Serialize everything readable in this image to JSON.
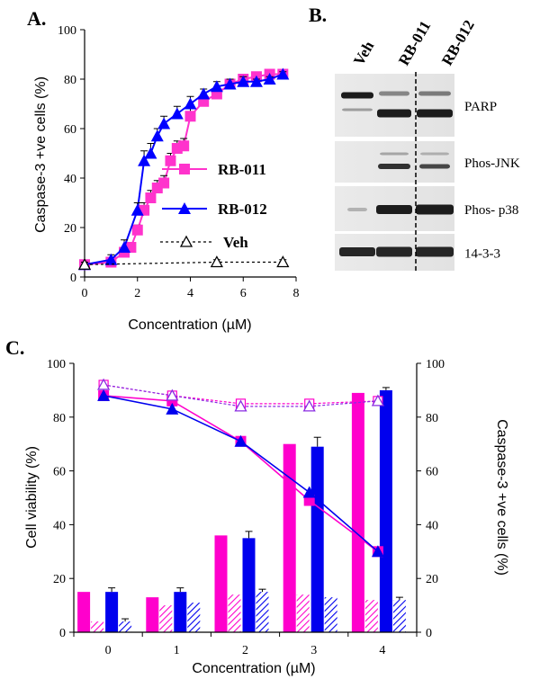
{
  "panels": {
    "a": "A.",
    "b": "B.",
    "c": "C."
  },
  "chart_data": [
    {
      "type": "line",
      "xlabel": "Concentration (µM)",
      "ylabel": "Caspase-3 +ve cells (%)",
      "xlim": [
        0,
        8
      ],
      "ylim": [
        0,
        100
      ],
      "xticks": [
        "0",
        "2",
        "4",
        "6",
        "8"
      ],
      "yticks": [
        "0",
        "20",
        "40",
        "60",
        "80",
        "100"
      ],
      "grid": false,
      "legend": "right",
      "series": [
        {
          "name": "RB-011",
          "color": "#ff33cc",
          "marker": "square",
          "dash": false,
          "x": [
            0,
            1,
            1.5,
            1.75,
            2,
            2.25,
            2.5,
            2.75,
            3,
            3.25,
            3.5,
            3.75,
            4,
            4.5,
            5,
            5.5,
            6,
            6.5,
            7,
            7.5
          ],
          "y": [
            5,
            6,
            10,
            12,
            19,
            27,
            32,
            36,
            38,
            47,
            52,
            53,
            65,
            71,
            74,
            78,
            80,
            81,
            82,
            82
          ],
          "err": [
            1,
            1,
            2,
            2,
            2,
            3,
            3,
            3,
            3,
            3,
            3,
            3,
            3,
            2,
            2,
            2,
            2,
            1,
            1,
            1
          ]
        },
        {
          "name": "RB-012",
          "color": "#0000ff",
          "marker": "triangle",
          "dash": false,
          "x": [
            0,
            1,
            1.5,
            2,
            2.25,
            2.5,
            2.75,
            3,
            3.5,
            4,
            4.5,
            5,
            5.5,
            6,
            6.5,
            7,
            7.5
          ],
          "y": [
            5,
            7,
            12,
            27,
            47,
            50,
            57,
            62,
            66,
            70,
            74,
            77,
            78,
            79,
            79,
            80,
            82
          ],
          "err": [
            1,
            2,
            3,
            3,
            4,
            4,
            3,
            3,
            3,
            3,
            2,
            2,
            2,
            2,
            1,
            1,
            1
          ]
        },
        {
          "name": "Veh",
          "color": "#000000",
          "marker": "open-triangle",
          "dash": true,
          "x": [
            0,
            5,
            7.5
          ],
          "y": [
            5,
            6,
            6
          ],
          "err": [
            1,
            1,
            1
          ]
        }
      ]
    },
    {
      "type": "table",
      "lanes": [
        "Veh",
        "RB-011",
        "RB-012"
      ],
      "rows": [
        "PARP",
        "Phos-JNK",
        "Phos- p38",
        "14-3-3"
      ]
    },
    {
      "type": "bar",
      "xlabel": "Concentration (µM)",
      "ylabel": "Cell viability (%)",
      "y2label": "Caspase-3 +ve cells (%)",
      "categories": [
        "0",
        "1",
        "2",
        "3",
        "4"
      ],
      "ylim": [
        0,
        100
      ],
      "yticks": [
        "0",
        "20",
        "40",
        "60",
        "80",
        "100"
      ],
      "grid": false,
      "bar_series": [
        {
          "color": "#ff00cc",
          "pattern": "solid",
          "values": [
            15,
            13,
            36,
            70,
            89
          ],
          "err": [
            0,
            0,
            0,
            0,
            0
          ]
        },
        {
          "color": "#ff00cc",
          "pattern": "hatch",
          "values": [
            4,
            10,
            14,
            14,
            12
          ],
          "err": [
            0,
            0,
            0,
            0,
            0
          ]
        },
        {
          "color": "#0000ee",
          "pattern": "solid",
          "values": [
            15,
            15,
            35,
            69,
            90
          ],
          "err": [
            1.5,
            1.5,
            2.5,
            3.5,
            1
          ]
        },
        {
          "color": "#0000ee",
          "pattern": "hatch",
          "values": [
            4,
            11,
            15,
            13,
            12
          ],
          "err": [
            1,
            0,
            1,
            0,
            1
          ]
        }
      ],
      "line_series": [
        {
          "color": "#ff00cc",
          "marker": "square",
          "values": [
            88,
            86,
            71,
            49,
            30
          ]
        },
        {
          "color": "#0000ee",
          "marker": "triangle",
          "values": [
            88,
            83,
            71,
            52,
            30
          ]
        },
        {
          "color": "#ff00cc",
          "marker": "open-square",
          "dash": true,
          "values": [
            92,
            88,
            85,
            85,
            86
          ]
        },
        {
          "color": "#8a2be2",
          "marker": "open-triangle",
          "dash": true,
          "values": [
            92,
            88,
            84,
            84,
            86
          ]
        }
      ]
    }
  ]
}
